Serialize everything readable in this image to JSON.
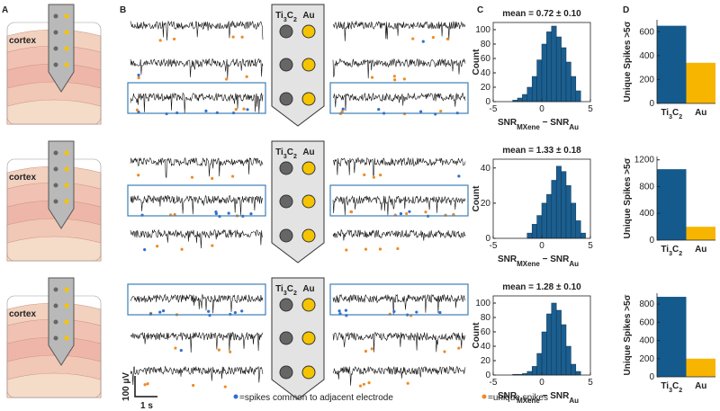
{
  "panel_labels": [
    "A",
    "B",
    "C",
    "D"
  ],
  "cortex_label": "cortex",
  "electrode_labels": [
    "Ti3C2",
    "Au"
  ],
  "scale_bar": {
    "voltage": "100 µV",
    "time": "1 s"
  },
  "legend": {
    "common": "=spikes common to adjacent electrode",
    "unique": "=unique spikes",
    "common_color": "#2f6fd0",
    "unique_color": "#f08a24"
  },
  "chart_data": [
    {
      "type": "histogram",
      "title": "mean = 0.72 ± 0.10",
      "bins": [
        -3,
        -2.5,
        -2,
        -1.5,
        -1,
        -0.5,
        0,
        0.5,
        1,
        1.5,
        2,
        2.5,
        3,
        3.5,
        4
      ],
      "values": [
        2,
        5,
        10,
        20,
        35,
        58,
        80,
        97,
        105,
        90,
        75,
        55,
        35,
        15
      ],
      "color": "#1b5e8f",
      "xlim": [
        -5,
        5
      ],
      "xticks": [
        -5,
        0,
        5
      ],
      "ylim": [
        0,
        110
      ],
      "yticks": [
        0,
        20,
        40,
        60,
        80,
        100
      ],
      "ylabel": "Count",
      "xlabel": [
        "SNR",
        "MXene",
        " − SNR",
        "Au"
      ]
    },
    {
      "type": "histogram",
      "title": "mean = 1.33 ± 0.18",
      "bins": [
        -1.5,
        -1,
        -0.5,
        0,
        0.5,
        1,
        1.5,
        2,
        2.5,
        3,
        3.5,
        4,
        4.5
      ],
      "values": [
        3,
        8,
        13,
        20,
        25,
        33,
        41,
        38,
        30,
        20,
        10,
        3
      ],
      "color": "#1b5e8f",
      "xlim": [
        -5,
        5
      ],
      "xticks": [
        -5,
        0,
        5
      ],
      "ylim": [
        0,
        45
      ],
      "yticks": [
        0,
        20,
        40
      ],
      "ylabel": "Count",
      "xlabel": [
        "SNR",
        "MXene",
        " − SNR",
        "Au"
      ]
    },
    {
      "type": "histogram",
      "title": "mean = 1.28 ± 0.10",
      "bins": [
        -3,
        -2.5,
        -2,
        -1.5,
        -1,
        -0.5,
        0,
        0.5,
        1,
        1.5,
        2,
        2.5,
        3,
        3.5,
        4
      ],
      "values": [
        1,
        1,
        2,
        5,
        12,
        30,
        60,
        85,
        100,
        90,
        70,
        40,
        15,
        5
      ],
      "color": "#1b5e8f",
      "xlim": [
        -5,
        5
      ],
      "xticks": [
        -5,
        0,
        5
      ],
      "ylim": [
        0,
        110
      ],
      "yticks": [
        0,
        20,
        40,
        60,
        80,
        100
      ],
      "ylabel": "Count",
      "xlabel": [
        "SNR",
        "MXene",
        " − SNR",
        "Au"
      ]
    },
    {
      "type": "bar",
      "categories": [
        "Ti3C2",
        "Au"
      ],
      "values": [
        650,
        340
      ],
      "colors": [
        "#145a8c",
        "#f7b500"
      ],
      "ylim": [
        0,
        700
      ],
      "yticks": [
        0,
        200,
        400,
        600
      ],
      "ylabel": "Unique Spikes >5σ"
    },
    {
      "type": "bar",
      "categories": [
        "Ti3C2",
        "Au"
      ],
      "values": [
        1060,
        200
      ],
      "colors": [
        "#145a8c",
        "#f7b500"
      ],
      "ylim": [
        0,
        1250
      ],
      "yticks": [
        0,
        400,
        800,
        1200
      ],
      "ylabel": "Unique Spikes >5σ"
    },
    {
      "type": "bar",
      "categories": [
        "Ti3C2",
        "Au"
      ],
      "values": [
        880,
        200
      ],
      "colors": [
        "#145a8c",
        "#f7b500"
      ],
      "ylim": [
        0,
        920
      ],
      "yticks": [
        0,
        200,
        400,
        600,
        800
      ],
      "ylabel": "Unique Spikes >5σ"
    }
  ]
}
